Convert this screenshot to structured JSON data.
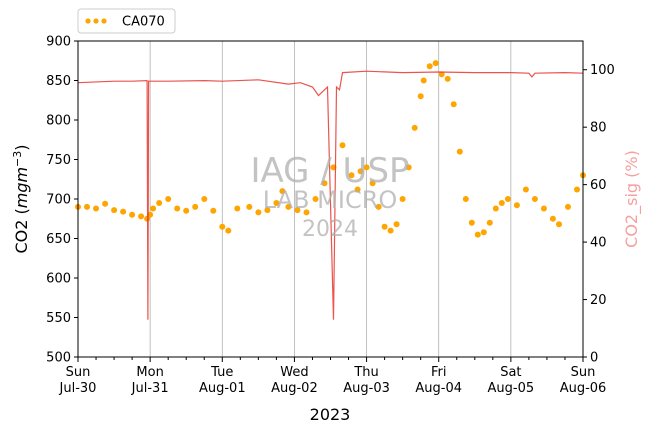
{
  "chart_data": {
    "type": "line",
    "xlabel": "2023",
    "ylabel_left_prefix": "CO2 (",
    "ylabel_left_unit": "mgm",
    "ylabel_left_exp": "−3",
    "ylabel_left_suffix": ")",
    "ylabel_right": "CO2_sig (%)",
    "xlim": [
      "2023-07-30T00:00",
      "2023-08-06T00:00"
    ],
    "ylim_left": [
      500,
      900
    ],
    "ylim_right": [
      0,
      110
    ],
    "grid": "vertical-major",
    "legend_placement": "top-left-outside",
    "x_ticks_major": [
      {
        "at": "2023-07-30T00:00",
        "day": "Sun",
        "date": "Jul-30"
      },
      {
        "at": "2023-07-31T00:00",
        "day": "Mon",
        "date": "Jul-31"
      },
      {
        "at": "2023-08-01T00:00",
        "day": "Tue",
        "date": "Aug-01"
      },
      {
        "at": "2023-08-02T00:00",
        "day": "Wed",
        "date": "Aug-02"
      },
      {
        "at": "2023-08-03T00:00",
        "day": "Thu",
        "date": "Aug-03"
      },
      {
        "at": "2023-08-04T00:00",
        "day": "Fri",
        "date": "Aug-04"
      },
      {
        "at": "2023-08-05T00:00",
        "day": "Sat",
        "date": "Aug-05"
      },
      {
        "at": "2023-08-06T00:00",
        "day": "Sun",
        "date": "Aug-06"
      }
    ],
    "y_ticks_left": [
      500,
      550,
      600,
      650,
      700,
      750,
      800,
      850,
      900
    ],
    "y_ticks_right": [
      0,
      20,
      40,
      60,
      80,
      100
    ],
    "watermark": [
      "IAG / USP",
      "LAB MICRO",
      "2024"
    ],
    "series": [
      {
        "name": "CA070",
        "axis": "left",
        "style": "dots",
        "color": "#FFA500",
        "points": [
          [
            "2023-07-30T00:00",
            690
          ],
          [
            "2023-07-30T03:00",
            690
          ],
          [
            "2023-07-30T06:00",
            688
          ],
          [
            "2023-07-30T09:00",
            694
          ],
          [
            "2023-07-30T12:00",
            686
          ],
          [
            "2023-07-30T15:00",
            684
          ],
          [
            "2023-07-30T18:00",
            680
          ],
          [
            "2023-07-30T21:00",
            678
          ],
          [
            "2023-07-31T00:00",
            680
          ],
          [
            "2023-07-30T23:00",
            675
          ],
          [
            "2023-07-31T01:00",
            688
          ],
          [
            "2023-07-31T03:00",
            695
          ],
          [
            "2023-07-31T06:00",
            700
          ],
          [
            "2023-07-31T09:00",
            688
          ],
          [
            "2023-07-31T12:00",
            685
          ],
          [
            "2023-07-31T15:00",
            690
          ],
          [
            "2023-07-31T18:00",
            700
          ],
          [
            "2023-07-31T21:00",
            685
          ],
          [
            "2023-08-01T00:00",
            665
          ],
          [
            "2023-08-01T02:00",
            660
          ],
          [
            "2023-08-01T05:00",
            688
          ],
          [
            "2023-08-01T09:00",
            690
          ],
          [
            "2023-08-01T12:00",
            683
          ],
          [
            "2023-08-01T15:00",
            686
          ],
          [
            "2023-08-01T18:00",
            695
          ],
          [
            "2023-08-01T20:00",
            710
          ],
          [
            "2023-08-01T22:00",
            690
          ],
          [
            "2023-08-02T01:00",
            686
          ],
          [
            "2023-08-02T04:00",
            683
          ],
          [
            "2023-08-02T07:00",
            700
          ],
          [
            "2023-08-02T10:00",
            720
          ],
          [
            "2023-08-02T13:00",
            740
          ],
          [
            "2023-08-02T16:00",
            768
          ],
          [
            "2023-08-02T19:00",
            730
          ],
          [
            "2023-08-02T21:00",
            712
          ],
          [
            "2023-08-02T22:00",
            735
          ],
          [
            "2023-08-03T00:00",
            740
          ],
          [
            "2023-08-03T02:00",
            720
          ],
          [
            "2023-08-03T04:00",
            690
          ],
          [
            "2023-08-03T06:00",
            665
          ],
          [
            "2023-08-03T08:00",
            660
          ],
          [
            "2023-08-03T10:00",
            668
          ],
          [
            "2023-08-03T12:00",
            700
          ],
          [
            "2023-08-03T14:00",
            740
          ],
          [
            "2023-08-03T16:00",
            790
          ],
          [
            "2023-08-03T18:00",
            830
          ],
          [
            "2023-08-03T19:00",
            850
          ],
          [
            "2023-08-03T21:00",
            868
          ],
          [
            "2023-08-03T23:00",
            872
          ],
          [
            "2023-08-04T01:00",
            858
          ],
          [
            "2023-08-04T03:00",
            852
          ],
          [
            "2023-08-04T05:00",
            820
          ],
          [
            "2023-08-04T07:00",
            760
          ],
          [
            "2023-08-04T09:00",
            700
          ],
          [
            "2023-08-04T11:00",
            670
          ],
          [
            "2023-08-04T13:00",
            655
          ],
          [
            "2023-08-04T15:00",
            658
          ],
          [
            "2023-08-04T17:00",
            670
          ],
          [
            "2023-08-04T19:00",
            688
          ],
          [
            "2023-08-04T21:00",
            695
          ],
          [
            "2023-08-04T23:00",
            700
          ],
          [
            "2023-08-05T02:00",
            692
          ],
          [
            "2023-08-05T05:00",
            712
          ],
          [
            "2023-08-05T08:00",
            700
          ],
          [
            "2023-08-05T11:00",
            688
          ],
          [
            "2023-08-05T14:00",
            675
          ],
          [
            "2023-08-05T16:00",
            668
          ],
          [
            "2023-08-05T19:00",
            690
          ],
          [
            "2023-08-05T22:00",
            712
          ],
          [
            "2023-08-06T00:00",
            730
          ]
        ]
      },
      {
        "name": "CO2_sig",
        "axis": "right",
        "style": "line",
        "color": "#E8413A",
        "points": [
          [
            "2023-07-30T00:00",
            95.5
          ],
          [
            "2023-07-30T12:00",
            96
          ],
          [
            "2023-07-30T18:00",
            96
          ],
          [
            "2023-07-30T23:00",
            96.2
          ],
          [
            "2023-07-30T23:15",
            13
          ],
          [
            "2023-07-30T23:30",
            96
          ],
          [
            "2023-07-31T06:00",
            96
          ],
          [
            "2023-07-31T18:00",
            96.2
          ],
          [
            "2023-08-01T00:00",
            96
          ],
          [
            "2023-08-01T12:00",
            96.5
          ],
          [
            "2023-08-01T22:00",
            95
          ],
          [
            "2023-08-02T02:00",
            95.5
          ],
          [
            "2023-08-02T06:00",
            94
          ],
          [
            "2023-08-02T08:00",
            91
          ],
          [
            "2023-08-02T11:00",
            94
          ],
          [
            "2023-08-02T13:00",
            13
          ],
          [
            "2023-08-02T14:00",
            94
          ],
          [
            "2023-08-02T15:00",
            93
          ],
          [
            "2023-08-02T16:00",
            99
          ],
          [
            "2023-08-03T00:00",
            99.5
          ],
          [
            "2023-08-03T12:00",
            99
          ],
          [
            "2023-08-04T00:00",
            99.2
          ],
          [
            "2023-08-04T12:00",
            99
          ],
          [
            "2023-08-05T00:00",
            99
          ],
          [
            "2023-08-05T06:00",
            98.8
          ],
          [
            "2023-08-05T07:00",
            97.5
          ],
          [
            "2023-08-05T08:00",
            98.8
          ],
          [
            "2023-08-05T18:00",
            99
          ],
          [
            "2023-08-06T00:00",
            98.8
          ]
        ]
      }
    ]
  }
}
